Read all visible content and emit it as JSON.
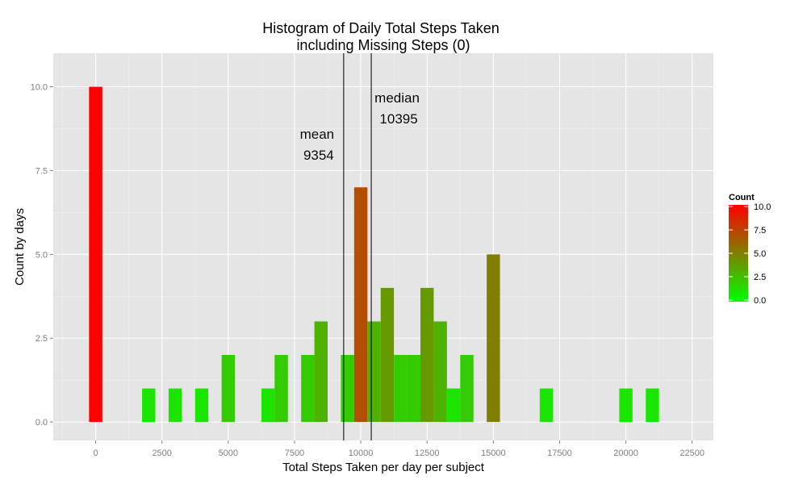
{
  "chart_data": {
    "type": "bar",
    "title": "Histogram of Daily Total Steps Taken",
    "subtitle": "including Missing Steps (0)",
    "xlabel": "Total Steps Taken per day per subject",
    "ylabel": "Count by days",
    "xlim": [
      -1600,
      23300
    ],
    "ylim": [
      -0.55,
      11.0
    ],
    "x_ticks": [
      0,
      2500,
      5000,
      7500,
      10000,
      12500,
      15000,
      17500,
      20000,
      22500
    ],
    "x_tick_labels": [
      "0",
      "2500",
      "5000",
      "7500",
      "10000",
      "12500",
      "15000",
      "17500",
      "20000",
      "22500"
    ],
    "y_ticks": [
      0,
      2.5,
      5,
      7.5,
      10
    ],
    "y_tick_labels": [
      "0.0",
      "2.5",
      "5.0",
      "7.5",
      "10.0"
    ],
    "grid": true,
    "bin_width": 500,
    "bins": [
      {
        "x": 0,
        "count": 10
      },
      {
        "x": 2000,
        "count": 1
      },
      {
        "x": 3000,
        "count": 1
      },
      {
        "x": 4000,
        "count": 1
      },
      {
        "x": 5000,
        "count": 2
      },
      {
        "x": 6500,
        "count": 1
      },
      {
        "x": 7000,
        "count": 2
      },
      {
        "x": 8000,
        "count": 2
      },
      {
        "x": 8500,
        "count": 3
      },
      {
        "x": 9500,
        "count": 2
      },
      {
        "x": 10000,
        "count": 7
      },
      {
        "x": 10500,
        "count": 3
      },
      {
        "x": 11000,
        "count": 4
      },
      {
        "x": 11500,
        "count": 2
      },
      {
        "x": 12000,
        "count": 2
      },
      {
        "x": 12500,
        "count": 4
      },
      {
        "x": 13000,
        "count": 3
      },
      {
        "x": 13500,
        "count": 1
      },
      {
        "x": 14000,
        "count": 2
      },
      {
        "x": 15000,
        "count": 5
      },
      {
        "x": 17000,
        "count": 1
      },
      {
        "x": 20000,
        "count": 1
      },
      {
        "x": 21000,
        "count": 1
      }
    ],
    "vlines": [
      {
        "name": "mean",
        "value": 9354
      },
      {
        "name": "median",
        "value": 10395
      }
    ],
    "annotations": [
      {
        "line1": "mean",
        "line2": "9354"
      },
      {
        "line1": "median",
        "line2": "10395"
      }
    ],
    "legend": {
      "title": "Count",
      "position": "right",
      "low_color": "#00ff00",
      "high_color": "#ff0000",
      "range": [
        0,
        10
      ],
      "breaks": [
        0,
        2.5,
        5,
        7.5,
        10
      ],
      "labels": [
        "0.0",
        "2.5",
        "5.0",
        "7.5",
        "10.0"
      ]
    },
    "panel_background": "#e5e5e5",
    "grid_color": "#ffffff"
  }
}
